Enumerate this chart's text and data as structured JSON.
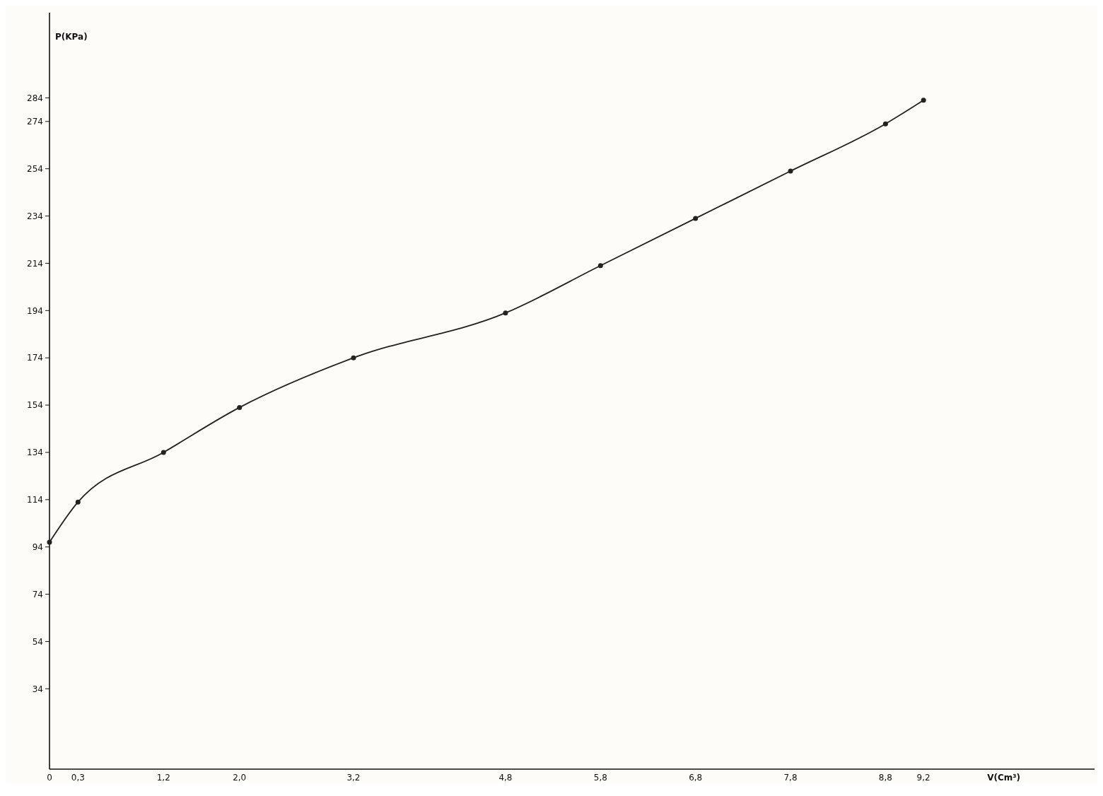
{
  "chart_data": {
    "type": "line",
    "xlabel": "V(Cm³)",
    "ylabel": "P(KPa)",
    "x": [
      0,
      0.3,
      1.2,
      2.0,
      3.2,
      4.8,
      5.8,
      6.8,
      7.8,
      8.8,
      9.2
    ],
    "series": [
      {
        "color": "#222222",
        "values": [
          96,
          113,
          134,
          153,
          174,
          193,
          213,
          233,
          253,
          273,
          283
        ]
      }
    ],
    "marker": "circle",
    "line_style": "solid",
    "grid": false,
    "xlim": [
      0,
      11
    ],
    "ylim": [
      0,
      320
    ],
    "xticks": [
      0,
      {
        "value": 0.3,
        "label": "0,3"
      },
      {
        "value": 1.2,
        "label": "1,2"
      },
      {
        "value": 2.0,
        "label": "2,0"
      },
      {
        "value": 3.2,
        "label": "3,2"
      },
      {
        "value": 4.8,
        "label": "4,8"
      },
      {
        "value": 5.8,
        "label": "5,8"
      },
      {
        "value": 6.8,
        "label": "6,8"
      },
      {
        "value": 7.8,
        "label": "7,8"
      },
      {
        "value": 8.8,
        "label": "8,8"
      },
      {
        "value": 9.2,
        "label": "9,2"
      }
    ],
    "yticks": [
      34,
      54,
      74,
      94,
      114,
      134,
      154,
      174,
      194,
      214,
      234,
      254,
      274,
      284
    ]
  }
}
